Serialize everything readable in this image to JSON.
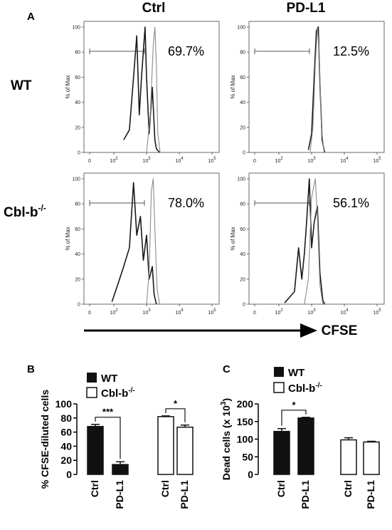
{
  "panel_labels": {
    "a": "A",
    "b": "B",
    "c": "C"
  },
  "columns": [
    "Ctrl",
    "PD-L1"
  ],
  "rows": [
    {
      "label": "WT",
      "sup": ""
    },
    {
      "label": "Cbl-b",
      "sup": "-/-"
    }
  ],
  "histogram_ylabel": "% of Max",
  "histogram_yticks": [
    "0",
    "20",
    "40",
    "60",
    "80",
    "100"
  ],
  "histogram_xticks": [
    {
      "base": "0",
      "exp": ""
    },
    {
      "base": "10",
      "exp": "2"
    },
    {
      "base": "10",
      "exp": "3"
    },
    {
      "base": "10",
      "exp": "4"
    },
    {
      "base": "10",
      "exp": "5"
    }
  ],
  "cfse_label": "CFSE",
  "legend": {
    "wt": "WT",
    "cblb": "Cbl-b",
    "cblb_sup": "-/-"
  },
  "chart_data": [
    {
      "type": "line",
      "id": "A-WT-Ctrl",
      "xscale": "log",
      "xlim": [
        0,
        100000
      ],
      "ylim": [
        0,
        100
      ],
      "gate_percent": "69.7%",
      "series": [
        {
          "values_x": [
            200,
            300,
            400,
            500,
            600,
            700,
            900,
            1000,
            1200,
            1500,
            1800,
            2000,
            2500
          ],
          "values_y": [
            10,
            18,
            60,
            93,
            30,
            60,
            100,
            60,
            15,
            52,
            10,
            3,
            0
          ]
        },
        {
          "values_x": [
            1000,
            1300,
            1600,
            1800,
            2000,
            2200,
            2600
          ],
          "values_y": [
            0,
            30,
            85,
            100,
            70,
            15,
            0
          ]
        }
      ]
    },
    {
      "type": "line",
      "id": "A-WT-PD-L1",
      "xscale": "log",
      "xlim": [
        0,
        100000
      ],
      "ylim": [
        0,
        100
      ],
      "gate_percent": "12.5%",
      "series": [
        {
          "values_x": [
            800,
            1000,
            1200,
            1400,
            1600,
            1800,
            2100,
            2500
          ],
          "values_y": [
            2,
            15,
            60,
            97,
            100,
            55,
            10,
            0
          ]
        },
        {
          "values_x": [
            900,
            1100,
            1300,
            1500,
            1700,
            2000,
            2400
          ],
          "values_y": [
            0,
            20,
            70,
            100,
            80,
            20,
            0
          ]
        }
      ]
    },
    {
      "type": "line",
      "id": "A-Cblb-Ctrl",
      "xscale": "log",
      "xlim": [
        0,
        100000
      ],
      "ylim": [
        0,
        100
      ],
      "gate_percent": "78.0%",
      "series": [
        {
          "values_x": [
            70,
            150,
            200,
            300,
            400,
            500,
            650,
            800,
            1000,
            1200,
            1500,
            1700,
            2000
          ],
          "values_y": [
            2,
            20,
            30,
            45,
            97,
            55,
            70,
            35,
            55,
            20,
            30,
            8,
            0
          ]
        },
        {
          "values_x": [
            1000,
            1200,
            1400,
            1600,
            1800,
            2100,
            2500
          ],
          "values_y": [
            0,
            25,
            90,
            100,
            60,
            12,
            0
          ]
        }
      ]
    },
    {
      "type": "line",
      "id": "A-Cblb-PD-L1",
      "xscale": "log",
      "xlim": [
        0,
        100000
      ],
      "ylim": [
        0,
        100
      ],
      "gate_percent": "56.1%",
      "series": [
        {
          "values_x": [
            150,
            300,
            400,
            500,
            600,
            700,
            850,
            1000,
            1200,
            1500,
            1800,
            2200,
            2500
          ],
          "values_y": [
            1,
            10,
            45,
            20,
            40,
            65,
            100,
            45,
            65,
            78,
            25,
            3,
            0
          ]
        },
        {
          "values_x": [
            600,
            800,
            1000,
            1300,
            1500,
            1800,
            2200
          ],
          "values_y": [
            0,
            20,
            85,
            100,
            70,
            15,
            0
          ]
        }
      ]
    },
    {
      "type": "bar",
      "id": "B",
      "ylabel": "% CFSE-diluted cells",
      "ylim": [
        0,
        100
      ],
      "yticks": [
        0,
        20,
        40,
        60,
        80,
        100
      ],
      "categories": [
        "Ctrl",
        "PD-L1",
        "Ctrl",
        "PD-L1"
      ],
      "groups": [
        "WT",
        "WT",
        "Cbl-b-/-",
        "Cbl-b-/-"
      ],
      "values": [
        68,
        14,
        82,
        67
      ],
      "errors": [
        3,
        4,
        1,
        3
      ],
      "significance": [
        {
          "between": [
            0,
            1
          ],
          "label": "***"
        },
        {
          "between": [
            2,
            3
          ],
          "label": "*"
        }
      ]
    },
    {
      "type": "bar",
      "id": "C",
      "ylabel": "Dead cells (x 10",
      "ylabel_sup": "3",
      "ylabel_end": ")",
      "ylim": [
        0,
        200
      ],
      "yticks": [
        0,
        50,
        100,
        150,
        200
      ],
      "categories": [
        "Ctrl",
        "PD-L1",
        "Ctrl",
        "PD-L1"
      ],
      "groups": [
        "WT",
        "WT",
        "Cbl-b-/-",
        "Cbl-b-/-"
      ],
      "values": [
        122,
        160,
        98,
        92
      ],
      "errors": [
        8,
        2,
        6,
        2
      ],
      "significance": [
        {
          "between": [
            0,
            1
          ],
          "label": "*"
        }
      ]
    }
  ]
}
